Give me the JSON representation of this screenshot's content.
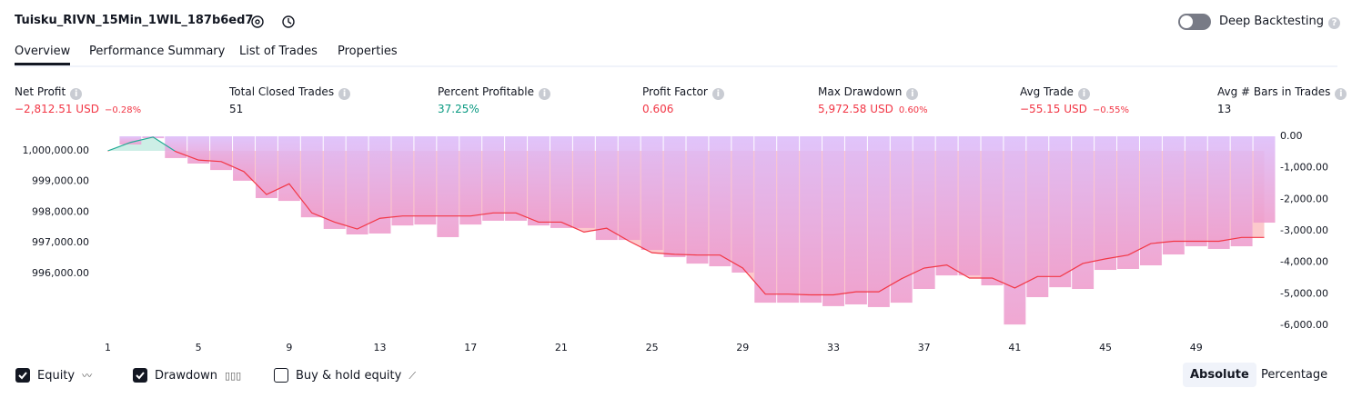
{
  "header": {
    "title": "Tuisku_RIVN_15Min_1WIL_187b6ed7",
    "deep_backtesting": "Deep Backtesting"
  },
  "tabs": [
    "Overview",
    "Performance Summary",
    "List of Trades",
    "Properties"
  ],
  "stats": [
    {
      "label": "Net Profit",
      "value": "−2,812.51 USD",
      "percent": "−0.28%",
      "color": "#f23645"
    },
    {
      "label": "Total Closed Trades",
      "value": "51",
      "color": "#131722"
    },
    {
      "label": "Percent Profitable",
      "value": "37.25%",
      "color": "#089981"
    },
    {
      "label": "Profit Factor",
      "value": "0.606",
      "color": "#f23645"
    },
    {
      "label": "Max Drawdown",
      "value": "5,972.58 USD",
      "percent": "0.60%",
      "color": "#f23645"
    },
    {
      "label": "Avg Trade",
      "value": "−55.15 USD",
      "percent": "−0.55%",
      "color": "#f23645"
    },
    {
      "label": "Avg # Bars in Trades",
      "value": "13",
      "color": "#131722"
    }
  ],
  "chart_data": {
    "type": "line",
    "x": [
      1,
      2,
      3,
      4,
      5,
      6,
      7,
      8,
      9,
      10,
      11,
      12,
      13,
      14,
      15,
      16,
      17,
      18,
      19,
      20,
      21,
      22,
      23,
      24,
      25,
      26,
      27,
      28,
      29,
      30,
      31,
      32,
      33,
      34,
      35,
      36,
      37,
      38,
      39,
      40,
      41,
      42,
      43,
      44,
      45,
      46,
      47,
      48,
      49,
      50,
      51,
      52
    ],
    "xlim": [
      0.5,
      52.5
    ],
    "xticks": [
      1,
      5,
      9,
      13,
      17,
      21,
      25,
      29,
      33,
      37,
      41,
      45,
      49
    ],
    "ylim": [
      994100,
      1000475
    ],
    "yticks": [
      {
        "value": 1000000,
        "label": "1,000,000.00"
      },
      {
        "value": 999000,
        "label": "999,000.00"
      },
      {
        "value": 998000,
        "label": "998,000.00"
      },
      {
        "value": 997000,
        "label": "997,000.00"
      },
      {
        "value": 996000,
        "label": "996,000.00"
      }
    ],
    "y2lim": [
      -6200,
      0
    ],
    "y2ticks": [
      {
        "value": 0,
        "label": "0.00"
      },
      {
        "value": -1000,
        "label": "-1,000.00"
      },
      {
        "value": -2000,
        "label": "-2,000.00"
      },
      {
        "value": -3000,
        "label": "-3,000.00"
      },
      {
        "value": -4000,
        "label": "-4,000.00"
      },
      {
        "value": -5000,
        "label": "-5,000.00"
      },
      {
        "value": -6000,
        "label": "-6,000.00"
      }
    ],
    "series": [
      {
        "name": "Equity",
        "type": "line",
        "checked": true,
        "color": "#f23645",
        "above_color": "#22ab94",
        "fill": "#fcc9cc",
        "above_fill": "#cdeee6",
        "values": [
          1000000,
          1000275,
          1000450,
          999975,
          999700,
          999650,
          999325,
          998575,
          998925,
          997975,
          997675,
          997450,
          997800,
          997875,
          997875,
          997875,
          997875,
          997975,
          997975,
          997675,
          997675,
          997350,
          997475,
          997050,
          996675,
          996625,
          996600,
          996600,
          996175,
          995325,
          995325,
          995300,
          995300,
          995400,
          995400,
          995825,
          996175,
          996275,
          995850,
          995850,
          995525,
          995900,
          995900,
          996325,
          996475,
          996600,
          996975,
          997050,
          997050,
          997050,
          997175,
          997175
        ]
      },
      {
        "name": "Drawdown",
        "type": "bar",
        "axis": "y2",
        "checked": true,
        "color": "#dcbcfa",
        "bottom_color": "#ee9ccc",
        "values": [
          0,
          -260,
          -60,
          -690,
          -865,
          -1070,
          -1410,
          -1960,
          -2050,
          -2570,
          -2940,
          -3115,
          -3085,
          -2830,
          -2800,
          -3200,
          -2800,
          -2680,
          -2680,
          -2830,
          -2910,
          -2910,
          -3290,
          -3290,
          -3605,
          -3835,
          -4040,
          -4125,
          -4325,
          -5280,
          -5280,
          -5280,
          -5390,
          -5335,
          -5420,
          -5280,
          -4845,
          -4415,
          -4415,
          -4730,
          -5973,
          -5105,
          -4790,
          -4845,
          -4240,
          -4210,
          -4095,
          -3750,
          -3490,
          -3575,
          -3490,
          -2740
        ]
      }
    ],
    "legend_options": [
      {
        "name": "Buy & hold equity",
        "checked": false
      }
    ],
    "modes": [
      "Absolute",
      "Percentage"
    ],
    "active_mode": 0
  }
}
